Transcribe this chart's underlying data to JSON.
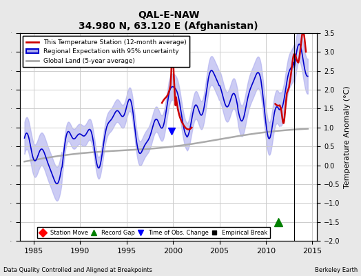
{
  "title": "QAL-E-NAW",
  "subtitle": "34.980 N, 63.120 E (Afghanistan)",
  "ylabel": "Temperature Anomaly (°C)",
  "xlabel_bottom_left": "Data Quality Controlled and Aligned at Breakpoints",
  "xlabel_bottom_right": "Berkeley Earth",
  "ylim": [
    -2.0,
    3.5
  ],
  "xlim": [
    1983.5,
    2015.5
  ],
  "xticks": [
    1985,
    1990,
    1995,
    2000,
    2005,
    2010,
    2015
  ],
  "yticks": [
    -2,
    -1.5,
    -1,
    -0.5,
    0,
    0.5,
    1,
    1.5,
    2,
    2.5,
    3,
    3.5
  ],
  "bg_color": "#e8e8e8",
  "plot_bg_color": "#ffffff",
  "grid_color": "#cccccc",
  "blue_line_color": "#0000cc",
  "blue_fill_color": "#aaaaee",
  "red_line_color": "#cc0000",
  "gray_line_color": "#aaaaaa",
  "vertical_line_x": 2013.0,
  "record_gap_x": 2011.3,
  "record_gap_y": -1.5,
  "obs_change_x1": 1999.8,
  "obs_change_y1": 0.9,
  "legend_items": [
    {
      "label": "This Temperature Station (12-month average)",
      "color": "#cc0000",
      "lw": 2
    },
    {
      "label": "Regional Expectation with 95% uncertainty",
      "color": "#0000cc",
      "lw": 2
    },
    {
      "label": "Global Land (5-year average)",
      "color": "#aaaaaa",
      "lw": 2
    }
  ],
  "bottom_legend": [
    {
      "label": "Station Move",
      "marker": "D",
      "color": "red"
    },
    {
      "label": "Record Gap",
      "marker": "^",
      "color": "green"
    },
    {
      "label": "Time of Obs. Change",
      "marker": "v",
      "color": "blue"
    },
    {
      "label": "Empirical Break",
      "marker": "s",
      "color": "black"
    }
  ]
}
